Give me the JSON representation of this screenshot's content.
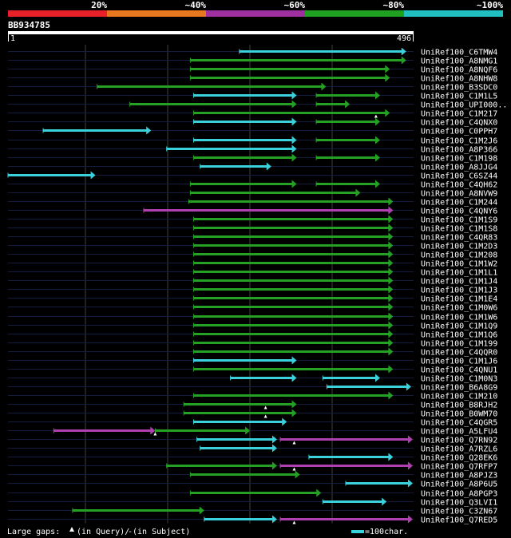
{
  "legend": {
    "bins": [
      {
        "label": "20%",
        "color": "#e8202a"
      },
      {
        "label": "~40%",
        "color": "#e87820"
      },
      {
        "label": "~60%",
        "color": "#a030a0"
      },
      {
        "label": "~80%",
        "color": "#20a020"
      },
      {
        "label": "~100%",
        "color": "#20c0c0"
      }
    ]
  },
  "query": {
    "id": "BB934785",
    "start": "1",
    "end": "496",
    "length": 496
  },
  "footer": {
    "gaps_label": "Large gaps:",
    "gap_query_label": "(in Query)/",
    "gap_subject_label": "(in Subject)",
    "scale_label": "=100char."
  },
  "colors": {
    "cyan": "#3ad0dc",
    "green": "#24a024",
    "magenta": "#b040b0",
    "track": "#141c40",
    "grid": "#404040"
  },
  "chart_data": {
    "type": "alignment-map",
    "query_length": 496,
    "hits": [
      {
        "name": "UniRef100_C6TMW4",
        "segs": [
          [
            283,
            487,
            "c"
          ]
        ]
      },
      {
        "name": "UniRef100_A8NMG1",
        "segs": [
          [
            223,
            487,
            "g"
          ]
        ]
      },
      {
        "name": "UniRef100_A8NQF6",
        "segs": [
          [
            223,
            467,
            "g"
          ]
        ]
      },
      {
        "name": "UniRef100_A8NHW8",
        "segs": [
          [
            223,
            467,
            "g"
          ]
        ]
      },
      {
        "name": "UniRef100_B3SDC0",
        "segs": [
          [
            109,
            389,
            "g"
          ]
        ]
      },
      {
        "name": "UniRef100_C1M1L5",
        "segs": [
          [
            227,
            353,
            "c"
          ],
          [
            377,
            455,
            "g"
          ]
        ]
      },
      {
        "name": "UniRef100_UPI000..",
        "segs": [
          [
            149,
            353,
            "g"
          ],
          [
            377,
            418,
            "g"
          ]
        ]
      },
      {
        "name": "UniRef100_C1M217",
        "segs": [
          [
            227,
            467,
            "g"
          ]
        ],
        "gaps": [
          450
        ]
      },
      {
        "name": "UniRef100_C4QNX0",
        "segs": [
          [
            227,
            353,
            "c"
          ],
          [
            377,
            455,
            "g"
          ]
        ]
      },
      {
        "name": "UniRef100_C0PPH7",
        "segs": [
          [
            43,
            175,
            "c"
          ]
        ]
      },
      {
        "name": "UniRef100_C1M2J6",
        "segs": [
          [
            227,
            353,
            "c"
          ],
          [
            377,
            455,
            "g"
          ]
        ]
      },
      {
        "name": "UniRef100_A8P366",
        "segs": [
          [
            194,
            353,
            "c"
          ]
        ]
      },
      {
        "name": "UniRef100_C1M198",
        "segs": [
          [
            227,
            353,
            "g"
          ],
          [
            377,
            455,
            "g"
          ]
        ]
      },
      {
        "name": "UniRef100_A8JJG4",
        "segs": [
          [
            235,
            322,
            "c"
          ]
        ]
      },
      {
        "name": "UniRef100_C6SZ44",
        "segs": [
          [
            0,
            107,
            "c"
          ]
        ]
      },
      {
        "name": "UniRef100_C4QH62",
        "segs": [
          [
            223,
            353,
            "g"
          ],
          [
            377,
            455,
            "g"
          ]
        ]
      },
      {
        "name": "UniRef100_A8NVW9",
        "segs": [
          [
            223,
            431,
            "g"
          ]
        ]
      },
      {
        "name": "UniRef100_C1M244",
        "segs": [
          [
            221,
            471,
            "g"
          ]
        ]
      },
      {
        "name": "UniRef100_C4QNY6",
        "segs": [
          [
            166,
            471,
            "m"
          ]
        ]
      },
      {
        "name": "UniRef100_C1M1S9",
        "segs": [
          [
            227,
            471,
            "g"
          ]
        ]
      },
      {
        "name": "UniRef100_C1M1S8",
        "segs": [
          [
            227,
            471,
            "g"
          ]
        ]
      },
      {
        "name": "UniRef100_C4QR83",
        "segs": [
          [
            227,
            471,
            "g"
          ]
        ]
      },
      {
        "name": "UniRef100_C1M2D3",
        "segs": [
          [
            227,
            471,
            "g"
          ]
        ]
      },
      {
        "name": "UniRef100_C1M208",
        "segs": [
          [
            227,
            471,
            "g"
          ]
        ]
      },
      {
        "name": "UniRef100_C1M1W2",
        "segs": [
          [
            227,
            471,
            "g"
          ]
        ]
      },
      {
        "name": "UniRef100_C1M1L1",
        "segs": [
          [
            227,
            471,
            "g"
          ]
        ]
      },
      {
        "name": "UniRef100_C1M1J4",
        "segs": [
          [
            227,
            471,
            "g"
          ]
        ]
      },
      {
        "name": "UniRef100_C1M1J3",
        "segs": [
          [
            227,
            471,
            "g"
          ]
        ]
      },
      {
        "name": "UniRef100_C1M1E4",
        "segs": [
          [
            227,
            471,
            "g"
          ]
        ]
      },
      {
        "name": "UniRef100_C1M0W6",
        "segs": [
          [
            227,
            471,
            "g"
          ]
        ]
      },
      {
        "name": "UniRef100_C1M1W6",
        "segs": [
          [
            227,
            471,
            "g"
          ]
        ]
      },
      {
        "name": "UniRef100_C1M1Q9",
        "segs": [
          [
            227,
            471,
            "g"
          ]
        ]
      },
      {
        "name": "UniRef100_C1M1Q6",
        "segs": [
          [
            227,
            471,
            "g"
          ]
        ]
      },
      {
        "name": "UniRef100_C1M199",
        "segs": [
          [
            227,
            471,
            "g"
          ]
        ]
      },
      {
        "name": "UniRef100_C4QQR0",
        "segs": [
          [
            227,
            471,
            "g"
          ]
        ]
      },
      {
        "name": "UniRef100_C1M1J6",
        "segs": [
          [
            227,
            353,
            "c"
          ]
        ]
      },
      {
        "name": "UniRef100_C4QNU1",
        "segs": [
          [
            227,
            471,
            "g"
          ]
        ]
      },
      {
        "name": "UniRef100_C1M0N3",
        "segs": [
          [
            272,
            353,
            "c"
          ],
          [
            385,
            455,
            "c"
          ]
        ]
      },
      {
        "name": "UniRef100_B6A8G9",
        "segs": [
          [
            390,
            493,
            "c"
          ]
        ]
      },
      {
        "name": "UniRef100_C1M210",
        "segs": [
          [
            227,
            471,
            "g"
          ]
        ]
      },
      {
        "name": "UniRef100_B8RJH2",
        "segs": [
          [
            215,
            353,
            "g"
          ]
        ],
        "gaps": [
          315
        ]
      },
      {
        "name": "UniRef100_B0WM70",
        "segs": [
          [
            215,
            353,
            "g"
          ]
        ],
        "gaps": [
          315
        ]
      },
      {
        "name": "UniRef100_C4QGR5",
        "segs": [
          [
            227,
            341,
            "c"
          ]
        ]
      },
      {
        "name": "UniRef100_A5LFU4",
        "segs": [
          [
            56,
            180,
            "m"
          ],
          [
            180,
            296,
            "g"
          ]
        ],
        "gaps": [
          180
        ]
      },
      {
        "name": "UniRef100_Q7RN92",
        "segs": [
          [
            231,
            329,
            "c"
          ],
          [
            333,
            495,
            "m"
          ]
        ],
        "gaps": [
          350
        ]
      },
      {
        "name": "UniRef100_A7RZL6",
        "segs": [
          [
            235,
            329,
            "c"
          ]
        ]
      },
      {
        "name": "UniRef100_Q28EK6",
        "segs": [
          [
            368,
            471,
            "c"
          ]
        ]
      },
      {
        "name": "UniRef100_Q7RFP7",
        "segs": [
          [
            194,
            329,
            "g"
          ],
          [
            333,
            495,
            "m"
          ]
        ],
        "gaps": [
          350
        ]
      },
      {
        "name": "UniRef100_A8PJZ3",
        "segs": [
          [
            223,
            357,
            "g"
          ]
        ]
      },
      {
        "name": "UniRef100_A8P6U5",
        "segs": [
          [
            413,
            495,
            "c"
          ]
        ]
      },
      {
        "name": "UniRef100_A8PGP3",
        "segs": [
          [
            223,
            383,
            "g"
          ]
        ]
      },
      {
        "name": "UniRef100_Q3LVI1",
        "segs": [
          [
            385,
            463,
            "c"
          ]
        ]
      },
      {
        "name": "UniRef100_C3ZN67",
        "segs": [
          [
            79,
            240,
            "g"
          ]
        ]
      },
      {
        "name": "UniRef100_Q7RED5",
        "segs": [
          [
            240,
            329,
            "c"
          ],
          [
            333,
            495,
            "m"
          ]
        ],
        "gaps": [
          350
        ]
      }
    ]
  }
}
